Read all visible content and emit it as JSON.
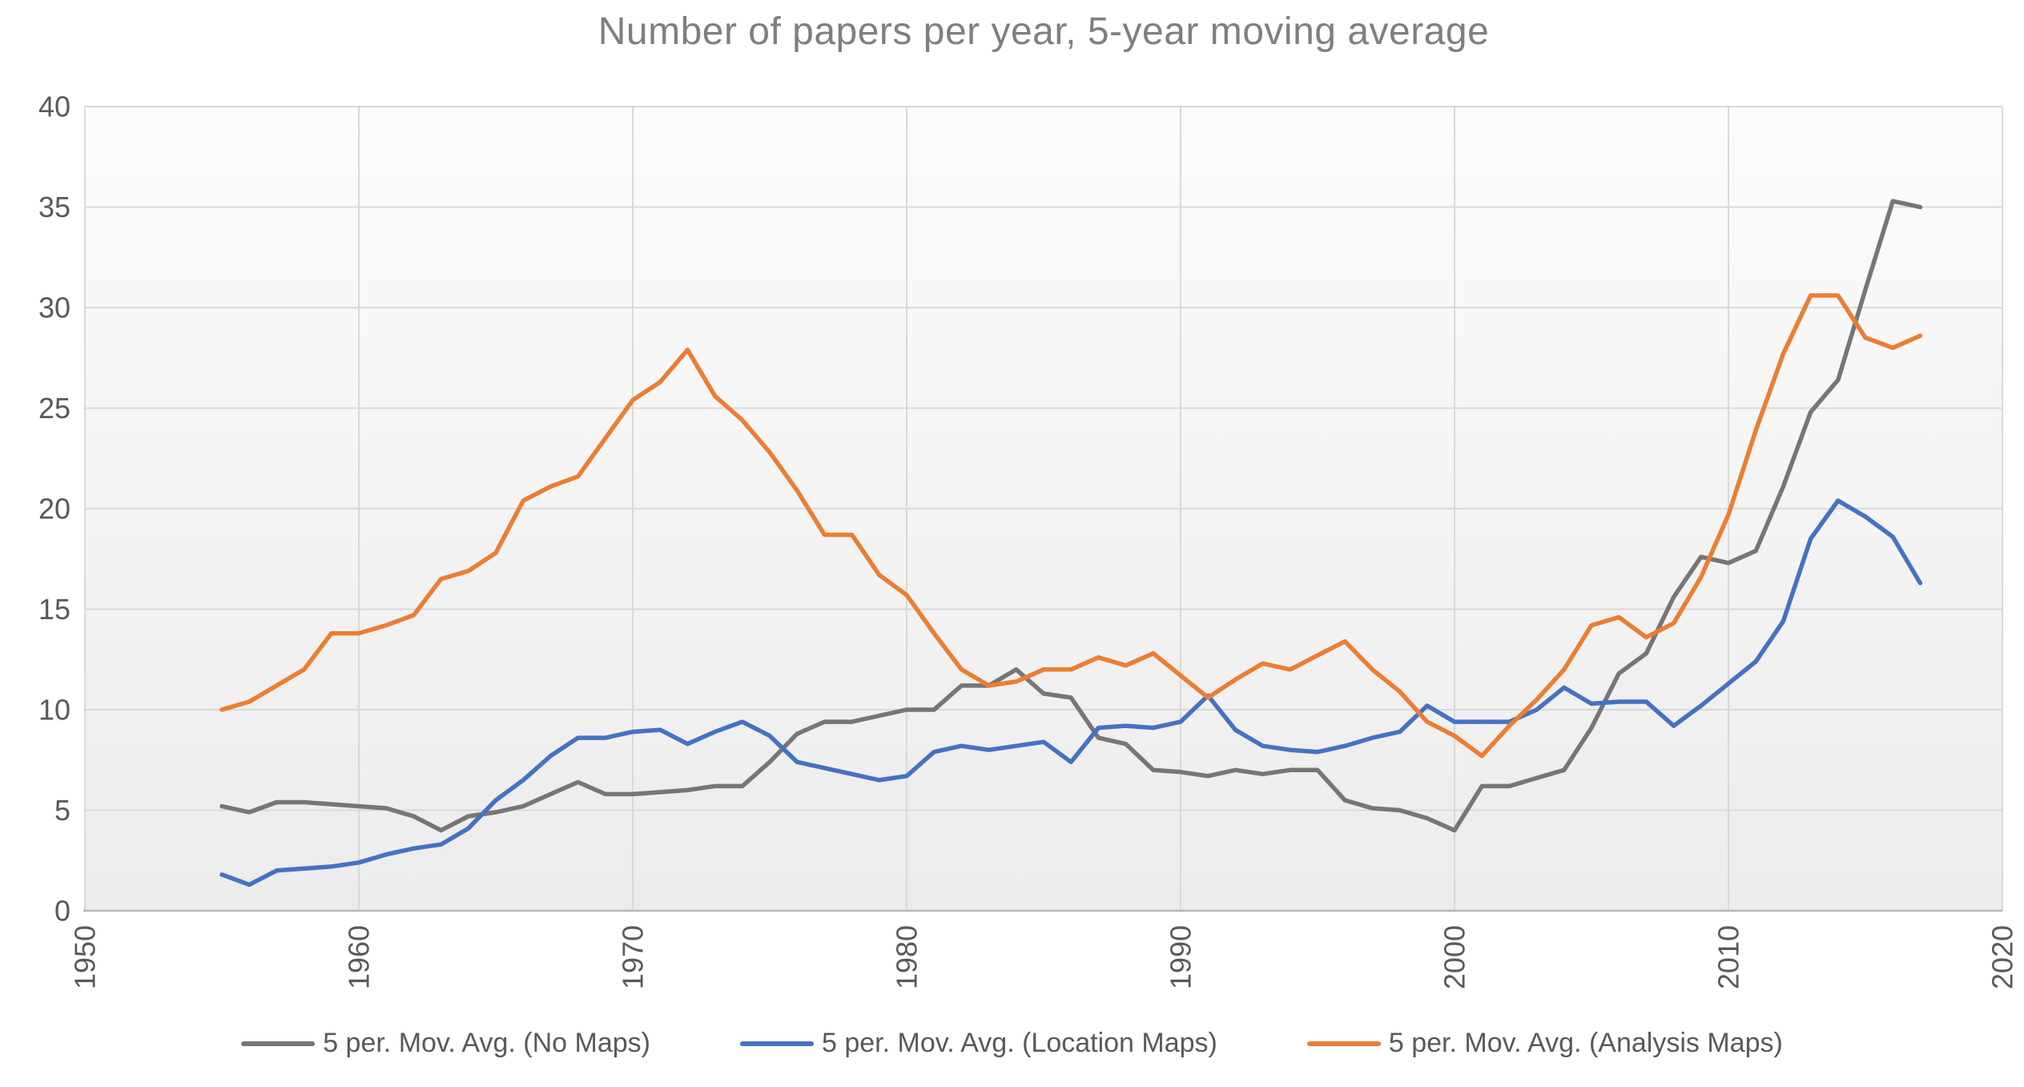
{
  "chart_data": {
    "type": "line",
    "title": "Number of papers per year, 5-year moving average",
    "x_axis": {
      "range": [
        1950,
        2020
      ],
      "ticks": [
        1950,
        1960,
        1970,
        1980,
        1990,
        2000,
        2010,
        2020
      ],
      "label_rotation_deg": -90
    },
    "y_axis": {
      "range": [
        0,
        40
      ],
      "ticks": [
        0,
        5,
        10,
        15,
        20,
        25,
        30,
        35,
        40
      ]
    },
    "grid": true,
    "legend_position": "bottom",
    "x": [
      1955,
      1956,
      1957,
      1958,
      1959,
      1960,
      1961,
      1962,
      1963,
      1964,
      1965,
      1966,
      1967,
      1968,
      1969,
      1970,
      1971,
      1972,
      1973,
      1974,
      1975,
      1976,
      1977,
      1978,
      1979,
      1980,
      1981,
      1982,
      1983,
      1984,
      1985,
      1986,
      1987,
      1988,
      1989,
      1990,
      1991,
      1992,
      1993,
      1994,
      1995,
      1996,
      1997,
      1998,
      1999,
      2000,
      2001,
      2002,
      2003,
      2004,
      2005,
      2006,
      2007,
      2008,
      2009,
      2010,
      2011,
      2012,
      2013,
      2014,
      2015,
      2016,
      2017
    ],
    "series": [
      {
        "name": "5 per. Mov. Avg. (No Maps)",
        "color": "#767676",
        "values": [
          5.2,
          4.9,
          5.4,
          5.4,
          5.3,
          5.2,
          5.1,
          4.7,
          4.0,
          4.7,
          4.9,
          5.2,
          5.8,
          6.4,
          5.8,
          5.8,
          5.9,
          6.0,
          6.2,
          6.2,
          7.4,
          8.8,
          9.4,
          9.4,
          9.7,
          10.0,
          10.0,
          11.2,
          11.2,
          12.0,
          10.8,
          10.6,
          8.6,
          8.3,
          7.0,
          6.9,
          6.7,
          7.0,
          6.8,
          7.0,
          7.0,
          5.5,
          5.1,
          5.0,
          4.6,
          4.0,
          6.2,
          6.2,
          6.6,
          7.0,
          9.1,
          11.8,
          12.8,
          15.6,
          17.6,
          17.3,
          17.9,
          21.1,
          24.8,
          26.4,
          30.9,
          35.3,
          35.0
        ]
      },
      {
        "name": "5 per. Mov. Avg. (Location Maps)",
        "color": "#4472C4",
        "values": [
          1.8,
          1.3,
          2.0,
          2.1,
          2.2,
          2.4,
          2.8,
          3.1,
          3.3,
          4.1,
          5.5,
          6.5,
          7.7,
          8.6,
          8.6,
          8.9,
          9.0,
          8.3,
          8.9,
          9.4,
          8.7,
          7.4,
          7.1,
          6.8,
          6.5,
          6.7,
          7.9,
          8.2,
          8.0,
          8.2,
          8.4,
          7.4,
          9.1,
          9.2,
          9.1,
          9.4,
          10.7,
          9.0,
          8.2,
          8.0,
          7.9,
          8.2,
          8.6,
          8.9,
          10.2,
          9.4,
          9.4,
          9.4,
          10.0,
          11.1,
          10.3,
          10.4,
          10.4,
          9.2,
          10.2,
          11.3,
          12.4,
          14.4,
          18.5,
          20.4,
          19.6,
          18.6,
          16.3
        ]
      },
      {
        "name": "5 per. Mov. Avg. (Analysis Maps)",
        "color": "#ED7D31",
        "values": [
          10.0,
          10.4,
          11.2,
          12.0,
          13.8,
          13.8,
          14.2,
          14.7,
          16.5,
          16.9,
          17.8,
          20.4,
          21.1,
          21.6,
          23.5,
          25.4,
          26.3,
          27.9,
          25.6,
          24.4,
          22.8,
          20.9,
          18.7,
          18.7,
          16.7,
          15.7,
          13.8,
          12.0,
          11.2,
          11.4,
          12.0,
          12.0,
          12.6,
          12.2,
          12.8,
          11.7,
          10.6,
          11.5,
          12.3,
          12.0,
          12.7,
          13.4,
          12.0,
          10.9,
          9.4,
          8.7,
          7.7,
          9.2,
          10.5,
          12.0,
          14.2,
          14.6,
          13.6,
          14.3,
          16.6,
          19.7,
          23.9,
          27.7,
          30.6,
          30.6,
          28.5,
          28.0,
          28.6
        ]
      }
    ]
  },
  "colors": {
    "title": "#7F7F7F",
    "tick_label": "#595959",
    "gridline": "#D9D9D9",
    "axis_line": "#B7B7B7",
    "plot_bg_top": "#FCFCFC",
    "plot_bg_bottom": "#ECECEC",
    "legend_text": "#595959",
    "page_bg": "#FFFFFF"
  }
}
